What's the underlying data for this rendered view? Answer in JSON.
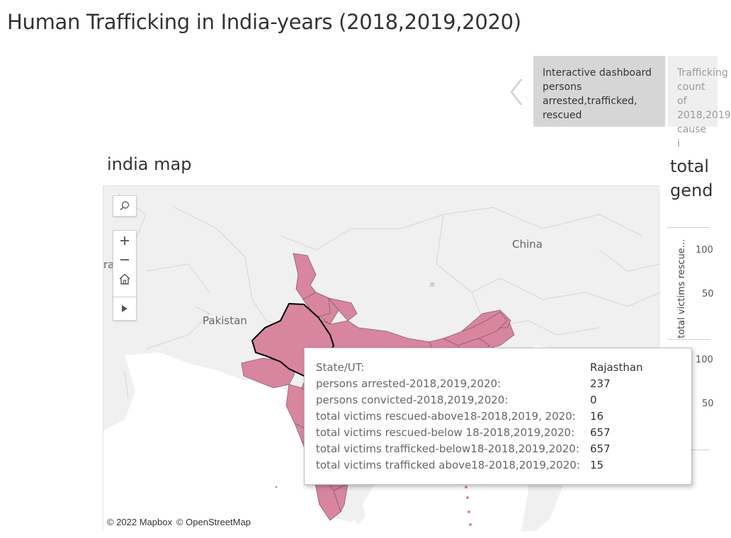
{
  "page": {
    "title": "Human Trafficking in India-years (2018,2019,2020)"
  },
  "story": {
    "points": [
      {
        "label": "Interactive dashboard persons arrested,trafficked, rescued"
      },
      {
        "label": "Trafficking count of 2018,2019 cause i"
      }
    ]
  },
  "map_section": {
    "title": "india map",
    "country_labels": {
      "china": "China",
      "pakistan": "Pakistan",
      "edge": "ra"
    },
    "attribution": {
      "mapbox": "© 2022 Mapbox",
      "osm": "© OpenStreetMap"
    },
    "fill_color": "#d8869f",
    "highlight_state": "Rajasthan"
  },
  "right_section": {
    "title_line1": "total",
    "title_line2": "gend",
    "axis_title": "total victims rescue...",
    "axis_title_prefix": "...",
    "ticks": [
      "100",
      "50",
      "100",
      "50"
    ]
  },
  "tooltip": {
    "rows": [
      {
        "label": "State/UT:",
        "value": "Rajasthan"
      },
      {
        "label": "persons arrested-2018,2019,2020:",
        "value": "237"
      },
      {
        "label": "persons convicted-2018,2019,2020:",
        "value": "0"
      },
      {
        "label": "total victims rescued-above18-2018,2019, 2020:",
        "value": "16"
      },
      {
        "label": "total victims rescued-below 18-2018,2019,2020:",
        "value": "657"
      },
      {
        "label": "total victims trafficked-below18-2018,2019,2020:",
        "value": "657"
      },
      {
        "label": "total victims trafficked above18-2018,2019,2020:",
        "value": "15"
      }
    ]
  },
  "icons": {
    "search": "search-icon",
    "zoom_in": "plus-icon",
    "zoom_out": "minus-icon",
    "home": "home-icon",
    "expand": "play-icon",
    "prev": "chevron-left-icon"
  }
}
